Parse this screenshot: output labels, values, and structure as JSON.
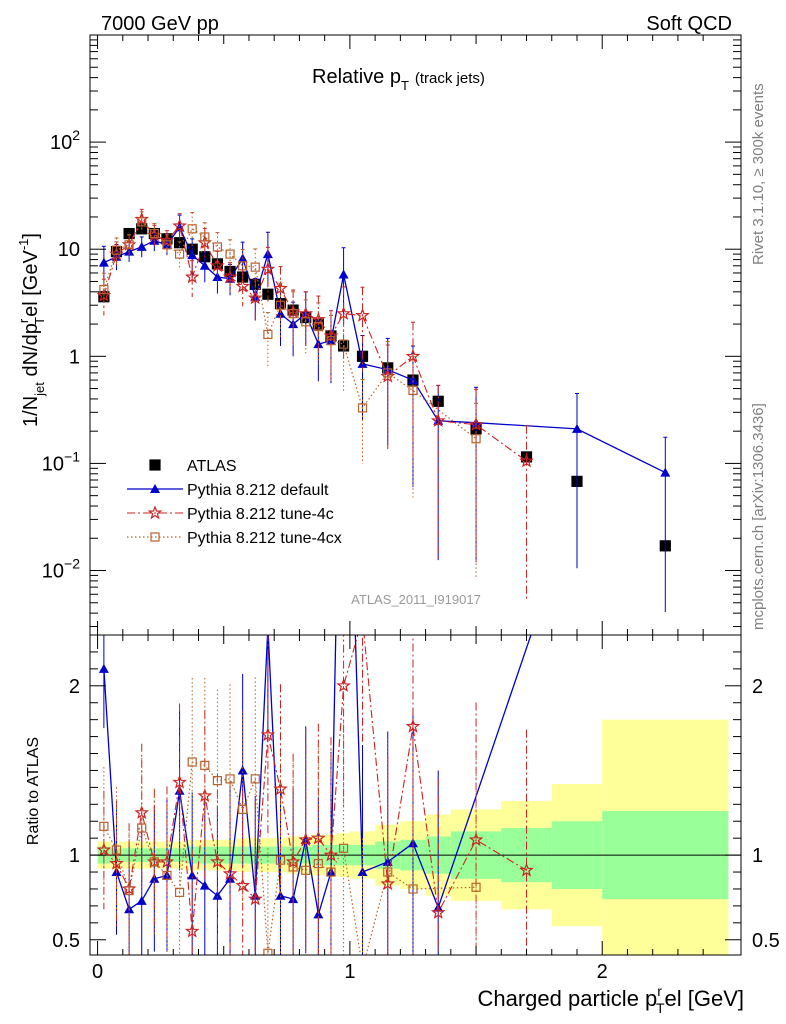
{
  "header": {
    "left_title": "7000 GeV pp",
    "right_title": "Soft QCD"
  },
  "side_labels": {
    "rivet": "Rivet 3.1.10, ≥ 300k events",
    "mcplots": "mcplots.cern.ch [arXiv:1306.3436]"
  },
  "chart_data": {
    "type": "scatter",
    "title": "Relative pT (track jets)",
    "title_main": "Relative p",
    "title_sub": "T",
    "title_suffix": "(track jets)",
    "analysis_id": "ATLAS_2011_I919017",
    "xlabel": "Charged particle pᵀʳel [GeV]",
    "xlabel_main": "Charged particle p",
    "xlabel_sub": "T",
    "xlabel_sup": "r",
    "xlabel_tail": "el [GeV]",
    "ylabel": "1/N_jet dN/dp_T^rel [GeV^-1]",
    "ylabel_parts": [
      "1/N",
      "jet",
      " dN/dp",
      "r",
      "T",
      "el [GeV",
      "-1",
      "]"
    ],
    "ratio_ylabel": "Ratio to ATLAS",
    "xlim": [
      -0.03,
      2.55
    ],
    "ylim": [
      0.0025,
      1000
    ],
    "yscale": "log",
    "ratio_ylim": [
      0.41,
      2.3
    ],
    "x_ticks": [
      {
        "value": 0,
        "label": "0"
      },
      {
        "value": 1,
        "label": "1"
      },
      {
        "value": 2,
        "label": "2"
      }
    ],
    "y_ticks": [
      {
        "value": 0.01,
        "label": "10",
        "exp": "−2"
      },
      {
        "value": 0.1,
        "label": "10",
        "exp": "−1"
      },
      {
        "value": 1,
        "label": "1",
        "exp": ""
      },
      {
        "value": 10,
        "label": "10",
        "exp": ""
      },
      {
        "value": 100,
        "label": "10",
        "exp": "2"
      }
    ],
    "ratio_ticks": [
      {
        "value": 0.5,
        "label": "0.5"
      },
      {
        "value": 1,
        "label": "1"
      },
      {
        "value": 2,
        "label": "2"
      }
    ],
    "legend_position": "lower-left",
    "series": [
      {
        "name": "ATLAS",
        "style": "data",
        "color": "#000000",
        "x": [
          0.025,
          0.075,
          0.125,
          0.175,
          0.225,
          0.275,
          0.325,
          0.375,
          0.425,
          0.475,
          0.525,
          0.575,
          0.625,
          0.675,
          0.725,
          0.775,
          0.825,
          0.875,
          0.925,
          0.975,
          1.05,
          1.15,
          1.25,
          1.35,
          1.5,
          1.7,
          1.9,
          2.25
        ],
        "y": [
          3.6,
          9.5,
          14.0,
          15.5,
          14.0,
          12.5,
          11.5,
          10.0,
          8.5,
          7.3,
          6.2,
          5.5,
          4.7,
          3.8,
          3.1,
          2.7,
          2.3,
          2.0,
          1.55,
          1.25,
          1.0,
          0.78,
          0.6,
          0.38,
          0.21,
          0.115,
          0.068,
          0.017
        ]
      },
      {
        "name": "Pythia 8.212 default",
        "style": "line-triangle",
        "color": "#0000cc",
        "x": [
          0.025,
          0.075,
          0.125,
          0.175,
          0.225,
          0.275,
          0.325,
          0.375,
          0.425,
          0.475,
          0.525,
          0.575,
          0.625,
          0.675,
          0.725,
          0.775,
          0.825,
          0.875,
          0.925,
          0.975,
          1.05,
          1.15,
          1.25,
          1.35,
          1.5,
          1.9,
          2.25
        ],
        "y": [
          7.5,
          8.5,
          9.5,
          10.5,
          12.0,
          11.0,
          16.0,
          8.8,
          7.0,
          5.5,
          5.3,
          8.2,
          3.6,
          9.0,
          2.5,
          2.0,
          2.5,
          1.3,
          1.4,
          5.8,
          0.85,
          0.75,
          0.6,
          0.25,
          0.24,
          0.21,
          0.082
        ]
      },
      {
        "name": "Pythia 8.212 tune-4c",
        "style": "dashdot-star",
        "color": "#cc2222",
        "x": [
          0.025,
          0.075,
          0.125,
          0.175,
          0.225,
          0.275,
          0.325,
          0.375,
          0.425,
          0.475,
          0.525,
          0.575,
          0.625,
          0.675,
          0.725,
          0.775,
          0.825,
          0.875,
          0.925,
          0.975,
          1.05,
          1.15,
          1.25,
          1.35,
          1.5,
          1.7
        ],
        "y": [
          3.7,
          9.0,
          11.0,
          19.0,
          13.5,
          12.0,
          16.5,
          5.5,
          11.5,
          7.0,
          5.5,
          4.5,
          3.5,
          6.5,
          4.3,
          2.6,
          2.5,
          2.2,
          1.55,
          2.5,
          2.4,
          0.65,
          1.0,
          0.25,
          0.23,
          0.105
        ]
      },
      {
        "name": "Pythia 8.212 tune-4cx",
        "style": "dotted-square",
        "color": "#b8622b",
        "x": [
          0.025,
          0.075,
          0.125,
          0.175,
          0.225,
          0.275,
          0.325,
          0.375,
          0.425,
          0.475,
          0.525,
          0.575,
          0.625,
          0.675,
          0.725,
          0.775,
          0.825,
          0.875,
          0.925,
          0.975,
          1.05,
          1.15,
          1.25,
          1.5
        ],
        "y": [
          4.2,
          9.8,
          11.0,
          18.0,
          14.0,
          11.0,
          9.0,
          15.5,
          13.0,
          10.5,
          9.0,
          7.0,
          6.8,
          1.6,
          3.0,
          2.5,
          2.1,
          1.9,
          1.4,
          1.3,
          0.33,
          0.7,
          0.48,
          0.17
        ]
      }
    ],
    "ratio_series": [
      {
        "name": "Pythia 8.212 default",
        "x": [
          0.025,
          0.075,
          0.125,
          0.175,
          0.225,
          0.275,
          0.325,
          0.375,
          0.425,
          0.475,
          0.525,
          0.575,
          0.625,
          0.675,
          0.725,
          0.775,
          0.825,
          0.875,
          0.925,
          0.975,
          1.05,
          1.15,
          1.25,
          1.35,
          1.9
        ],
        "y": [
          2.1,
          0.9,
          0.68,
          0.73,
          0.86,
          0.88,
          1.38,
          0.88,
          0.82,
          0.76,
          0.86,
          1.5,
          0.76,
          2.35,
          0.76,
          0.74,
          1.09,
          0.65,
          0.9,
          4.6,
          0.9,
          0.96,
          1.07,
          0.69,
          3.1
        ]
      },
      {
        "name": "Pythia 8.212 tune-4c",
        "x": [
          0.025,
          0.075,
          0.125,
          0.175,
          0.225,
          0.275,
          0.325,
          0.375,
          0.425,
          0.475,
          0.525,
          0.575,
          0.625,
          0.675,
          0.725,
          0.775,
          0.825,
          0.875,
          0.925,
          0.975,
          1.05,
          1.15,
          1.25,
          1.35,
          1.5,
          1.7
        ],
        "y": [
          1.03,
          0.95,
          0.8,
          1.25,
          0.96,
          0.96,
          1.43,
          0.55,
          1.35,
          0.96,
          0.89,
          0.82,
          0.74,
          1.71,
          1.39,
          0.96,
          1.09,
          1.1,
          1.0,
          2.0,
          2.4,
          0.83,
          1.76,
          0.66,
          1.09,
          0.91
        ]
      },
      {
        "name": "Pythia 8.212 tune-4cx",
        "x": [
          0.025,
          0.075,
          0.125,
          0.175,
          0.225,
          0.275,
          0.325,
          0.375,
          0.425,
          0.475,
          0.525,
          0.575,
          0.625,
          0.675,
          0.725,
          0.775,
          0.825,
          0.875,
          0.925,
          0.975,
          1.05,
          1.15,
          1.25,
          1.5
        ],
        "y": [
          1.17,
          1.03,
          0.79,
          1.16,
          0.96,
          0.88,
          0.78,
          1.55,
          1.53,
          1.44,
          1.45,
          1.27,
          1.45,
          0.42,
          0.97,
          0.93,
          0.91,
          0.95,
          0.9,
          1.04,
          0.33,
          0.9,
          0.8,
          0.81
        ]
      }
    ],
    "ratio_bands": {
      "edges": [
        0.0,
        0.05,
        0.1,
        0.15,
        0.2,
        0.25,
        0.3,
        0.35,
        0.4,
        0.45,
        0.5,
        0.55,
        0.6,
        0.65,
        0.7,
        0.75,
        0.8,
        0.85,
        0.9,
        0.95,
        1.0,
        1.1,
        1.2,
        1.3,
        1.4,
        1.6,
        1.8,
        2.0,
        2.5
      ],
      "inner": [
        0.05,
        0.04,
        0.04,
        0.04,
        0.04,
        0.04,
        0.04,
        0.05,
        0.05,
        0.05,
        0.05,
        0.05,
        0.05,
        0.05,
        0.05,
        0.05,
        0.05,
        0.06,
        0.06,
        0.06,
        0.06,
        0.08,
        0.09,
        0.11,
        0.14,
        0.16,
        0.2,
        0.26
      ],
      "outer": [
        0.08,
        0.08,
        0.08,
        0.08,
        0.08,
        0.08,
        0.08,
        0.09,
        0.09,
        0.09,
        0.09,
        0.1,
        0.1,
        0.1,
        0.1,
        0.11,
        0.11,
        0.12,
        0.12,
        0.13,
        0.14,
        0.18,
        0.2,
        0.24,
        0.27,
        0.32,
        0.42,
        0.8
      ]
    },
    "band_colors": {
      "inner": "#99ff99",
      "outer": "#ffff99"
    }
  }
}
